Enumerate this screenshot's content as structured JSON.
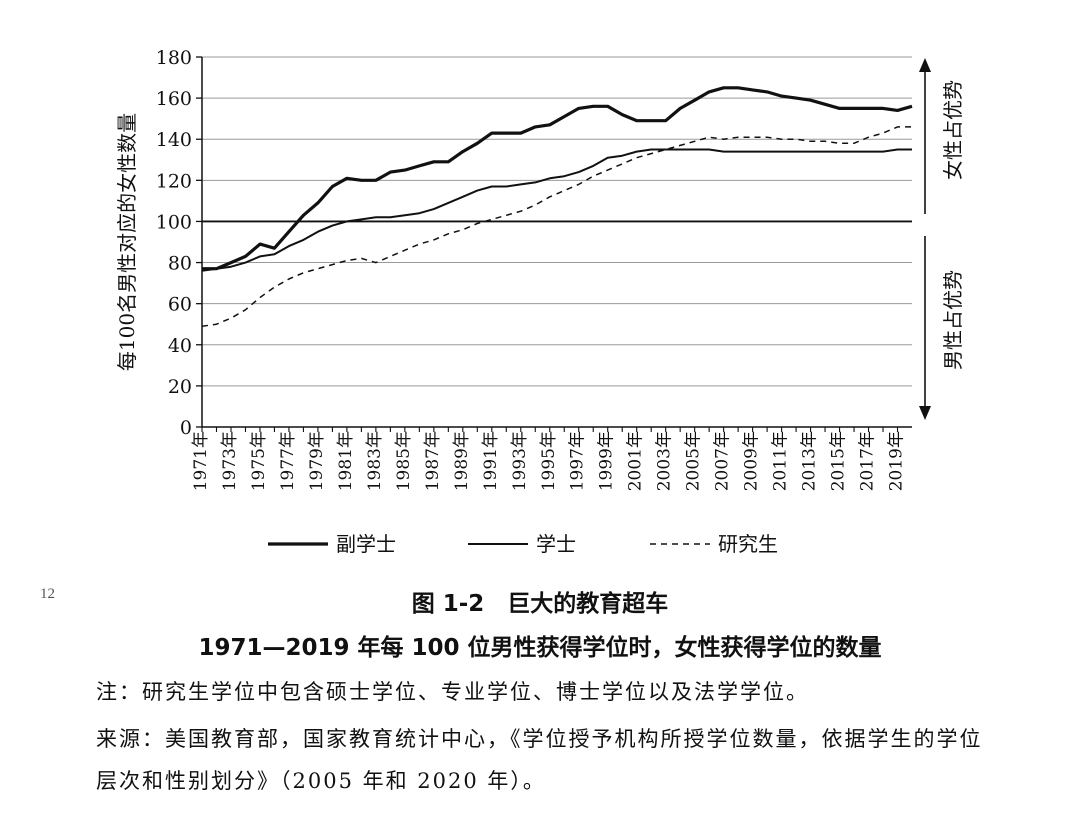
{
  "chart_data": {
    "type": "line",
    "ylabel": "每100名男性对应的女性数量",
    "ylim": [
      0,
      180
    ],
    "yticks": [
      0,
      20,
      40,
      60,
      80,
      100,
      120,
      140,
      160,
      180
    ],
    "x_range": [
      1971,
      2020
    ],
    "xtick_labels": [
      "1971年",
      "1973年",
      "1975年",
      "1977年",
      "1979年",
      "1981年",
      "1983年",
      "1985年",
      "1987年",
      "1989年",
      "1991年",
      "1993年",
      "1995年",
      "1997年",
      "1999年",
      "2001年",
      "2003年",
      "2005年",
      "2007年",
      "2009年",
      "2011年",
      "2013年",
      "2015年",
      "2017年",
      "2019年"
    ],
    "xtick_values": [
      1971,
      1973,
      1975,
      1977,
      1979,
      1981,
      1983,
      1985,
      1987,
      1989,
      1991,
      1993,
      1995,
      1997,
      1999,
      2001,
      2003,
      2005,
      2007,
      2009,
      2011,
      2013,
      2015,
      2017,
      2019
    ],
    "grid": true,
    "reference_line": 100,
    "region_labels": {
      "upper": "女性占优势",
      "lower": "男性占优势"
    },
    "legend_position": "bottom",
    "x": [
      1971,
      1972,
      1973,
      1974,
      1975,
      1976,
      1977,
      1978,
      1979,
      1980,
      1981,
      1982,
      1983,
      1984,
      1985,
      1986,
      1987,
      1988,
      1989,
      1990,
      1991,
      1992,
      1993,
      1994,
      1995,
      1996,
      1997,
      1998,
      1999,
      2000,
      2001,
      2002,
      2003,
      2004,
      2005,
      2006,
      2007,
      2008,
      2009,
      2010,
      2011,
      2012,
      2013,
      2014,
      2015,
      2016,
      2017,
      2018,
      2019,
      2020
    ],
    "series": [
      {
        "name": "副学士",
        "style": "solid-thick",
        "values": [
          77,
          77,
          80,
          83,
          89,
          87,
          95,
          103,
          109,
          117,
          121,
          120,
          120,
          124,
          125,
          127,
          129,
          129,
          134,
          138,
          143,
          143,
          143,
          146,
          147,
          151,
          155,
          156,
          156,
          152,
          149,
          149,
          149,
          155,
          159,
          163,
          165,
          165,
          164,
          163,
          161,
          160,
          159,
          157,
          155,
          155,
          155,
          155,
          154,
          156
        ]
      },
      {
        "name": "学士",
        "style": "solid-thin",
        "values": [
          76,
          77,
          78,
          80,
          83,
          84,
          88,
          91,
          95,
          98,
          100,
          101,
          102,
          102,
          103,
          104,
          106,
          109,
          112,
          115,
          117,
          117,
          118,
          119,
          121,
          122,
          124,
          127,
          131,
          132,
          134,
          135,
          135,
          135,
          135,
          135,
          134,
          134,
          134,
          134,
          134,
          134,
          134,
          134,
          134,
          134,
          134,
          134,
          135,
          135
        ]
      },
      {
        "name": "研究生",
        "style": "dashed",
        "values": [
          49,
          50,
          53,
          57,
          63,
          68,
          72,
          75,
          77,
          79,
          81,
          82,
          80,
          83,
          86,
          89,
          91,
          94,
          96,
          99,
          101,
          103,
          105,
          108,
          112,
          115,
          118,
          122,
          125,
          128,
          131,
          133,
          135,
          137,
          139,
          141,
          140,
          141,
          141,
          141,
          140,
          140,
          139,
          139,
          138,
          138,
          141,
          143,
          146,
          146
        ]
      }
    ]
  },
  "page_number": "12",
  "figure_title": "图 1-2　巨大的教育超车",
  "figure_subtitle": "1971—2019 年每 100 位男性获得学位时，女性获得学位的数量",
  "note": "注：研究生学位中包含硕士学位、专业学位、博士学位以及法学学位。",
  "source": "来源：美国教育部，国家教育统计中心，《学位授予机构所授学位数量，依据学生的学位层次和性别划分》（2005 年和 2020 年）。"
}
